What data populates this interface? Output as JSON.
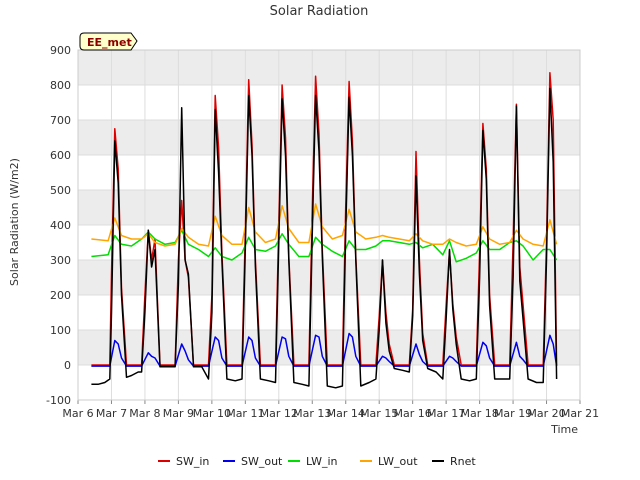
{
  "chart_data": {
    "type": "line",
    "title": "Solar Radiation",
    "xlabel": "Time",
    "ylabel": "Solar Radiation (W/m2)",
    "badge": "EE_met",
    "ylim": [
      -100,
      900
    ],
    "yticks": [
      -100,
      0,
      100,
      200,
      300,
      400,
      500,
      600,
      700,
      800,
      900
    ],
    "xlim": [
      6,
      21
    ],
    "xticks": [
      {
        "v": 6,
        "label": "Mar 6"
      },
      {
        "v": 7,
        "label": "Mar 7"
      },
      {
        "v": 8,
        "label": "Mar 8"
      },
      {
        "v": 9,
        "label": "Mar 9"
      },
      {
        "v": 10,
        "label": "Mar 10"
      },
      {
        "v": 11,
        "label": "Mar 11"
      },
      {
        "v": 12,
        "label": "Mar 12"
      },
      {
        "v": 13,
        "label": "Mar 13"
      },
      {
        "v": 14,
        "label": "Mar 14"
      },
      {
        "v": 15,
        "label": "Mar 15"
      },
      {
        "v": 16,
        "label": "Mar 16"
      },
      {
        "v": 17,
        "label": "Mar 17"
      },
      {
        "v": 18,
        "label": "Mar 18"
      },
      {
        "v": 19,
        "label": "Mar 19"
      },
      {
        "v": 20,
        "label": "Mar 20"
      },
      {
        "v": 21,
        "label": "Mar 21"
      }
    ],
    "grid": true,
    "legend_position": "bottom",
    "series": [
      {
        "name": "SW_in",
        "color": "#dd0000",
        "x": [
          6.4,
          6.95,
          7.0,
          7.1,
          7.2,
          7.3,
          7.45,
          7.6,
          7.9,
          8.0,
          8.1,
          8.2,
          8.3,
          8.45,
          8.9,
          9.0,
          9.1,
          9.2,
          9.3,
          9.45,
          9.9,
          10.0,
          10.1,
          10.2,
          10.3,
          10.45,
          10.9,
          11.0,
          11.1,
          11.2,
          11.3,
          11.45,
          11.9,
          12.0,
          12.1,
          12.2,
          12.3,
          12.45,
          12.9,
          13.0,
          13.1,
          13.2,
          13.3,
          13.45,
          13.9,
          14.0,
          14.1,
          14.2,
          14.3,
          14.45,
          14.9,
          15.0,
          15.1,
          15.2,
          15.3,
          15.45,
          15.9,
          16.0,
          16.1,
          16.2,
          16.3,
          16.45,
          16.9,
          17.0,
          17.1,
          17.2,
          17.3,
          17.45,
          17.9,
          18.0,
          18.1,
          18.2,
          18.3,
          18.45,
          18.9,
          19.0,
          19.1,
          19.2,
          19.3,
          19.45,
          19.9,
          20.0,
          20.1,
          20.2,
          20.3
        ],
        "y": [
          0,
          0,
          260,
          675,
          560,
          220,
          0,
          0,
          0,
          200,
          385,
          300,
          360,
          0,
          0,
          300,
          470,
          300,
          250,
          0,
          0,
          200,
          770,
          620,
          320,
          0,
          0,
          380,
          815,
          630,
          300,
          0,
          0,
          400,
          800,
          650,
          310,
          0,
          0,
          450,
          825,
          660,
          330,
          0,
          0,
          450,
          810,
          640,
          310,
          0,
          0,
          140,
          300,
          150,
          60,
          0,
          0,
          160,
          610,
          300,
          90,
          0,
          0,
          170,
          325,
          175,
          80,
          0,
          0,
          320,
          690,
          560,
          200,
          0,
          0,
          350,
          745,
          280,
          170,
          0,
          0,
          350,
          835,
          700,
          0
        ]
      },
      {
        "name": "SW_out",
        "color": "#0000ee",
        "x": [
          6.4,
          6.95,
          7.1,
          7.2,
          7.3,
          7.45,
          7.9,
          8.1,
          8.2,
          8.3,
          8.45,
          8.9,
          9.1,
          9.2,
          9.3,
          9.45,
          9.9,
          10.1,
          10.2,
          10.3,
          10.45,
          10.9,
          11.1,
          11.2,
          11.3,
          11.45,
          11.9,
          12.1,
          12.2,
          12.3,
          12.45,
          12.9,
          13.1,
          13.2,
          13.3,
          13.45,
          13.9,
          14.1,
          14.2,
          14.3,
          14.45,
          14.9,
          15.1,
          15.2,
          15.3,
          15.45,
          15.9,
          16.1,
          16.2,
          16.3,
          16.45,
          16.9,
          17.1,
          17.2,
          17.3,
          17.45,
          17.9,
          18.1,
          18.2,
          18.3,
          18.45,
          18.9,
          19.1,
          19.2,
          19.3,
          19.45,
          19.9,
          20.1,
          20.2,
          20.3
        ],
        "y": [
          -3,
          -3,
          70,
          60,
          20,
          -3,
          -3,
          35,
          25,
          20,
          -3,
          -3,
          60,
          40,
          15,
          -3,
          -3,
          80,
          70,
          20,
          -3,
          -3,
          80,
          70,
          20,
          -3,
          -3,
          80,
          75,
          25,
          -3,
          -3,
          85,
          80,
          25,
          -3,
          -3,
          90,
          80,
          25,
          -3,
          -3,
          25,
          20,
          10,
          -3,
          -3,
          60,
          30,
          10,
          -3,
          -3,
          25,
          20,
          10,
          -3,
          -3,
          65,
          55,
          20,
          -3,
          -3,
          65,
          25,
          15,
          -3,
          -3,
          85,
          60,
          -3
        ]
      },
      {
        "name": "LW_in",
        "color": "#00dd00",
        "x": [
          6.4,
          6.9,
          7.1,
          7.3,
          7.6,
          7.9,
          8.1,
          8.3,
          8.6,
          8.9,
          9.1,
          9.3,
          9.6,
          9.9,
          10.1,
          10.3,
          10.6,
          10.9,
          11.1,
          11.3,
          11.6,
          11.9,
          12.1,
          12.3,
          12.6,
          12.9,
          13.1,
          13.3,
          13.6,
          13.9,
          14.1,
          14.3,
          14.6,
          14.9,
          15.1,
          15.3,
          15.6,
          15.9,
          16.1,
          16.3,
          16.6,
          16.9,
          17.1,
          17.3,
          17.6,
          17.9,
          18.1,
          18.3,
          18.6,
          18.9,
          19.1,
          19.3,
          19.6,
          19.9,
          20.1,
          20.3
        ],
        "y": [
          310,
          315,
          370,
          345,
          340,
          360,
          380,
          360,
          345,
          350,
          385,
          345,
          330,
          310,
          335,
          310,
          300,
          320,
          365,
          330,
          325,
          340,
          375,
          345,
          310,
          310,
          365,
          345,
          325,
          310,
          355,
          330,
          330,
          340,
          355,
          355,
          350,
          345,
          350,
          335,
          345,
          315,
          355,
          295,
          305,
          320,
          355,
          330,
          330,
          350,
          355,
          340,
          300,
          330,
          330,
          300
        ]
      },
      {
        "name": "LW_out",
        "color": "#ffa500",
        "x": [
          6.4,
          6.9,
          7.1,
          7.3,
          7.6,
          7.9,
          8.1,
          8.3,
          8.6,
          8.9,
          9.1,
          9.3,
          9.6,
          9.9,
          10.1,
          10.3,
          10.6,
          10.9,
          11.1,
          11.3,
          11.6,
          11.9,
          12.1,
          12.3,
          12.6,
          12.9,
          13.1,
          13.3,
          13.6,
          13.9,
          14.1,
          14.3,
          14.6,
          14.9,
          15.1,
          15.3,
          15.6,
          15.9,
          16.1,
          16.3,
          16.6,
          16.9,
          17.1,
          17.3,
          17.6,
          17.9,
          18.1,
          18.3,
          18.6,
          18.9,
          19.1,
          19.3,
          19.6,
          19.9,
          20.1,
          20.3
        ],
        "y": [
          360,
          355,
          420,
          370,
          360,
          360,
          375,
          350,
          340,
          345,
          390,
          365,
          345,
          340,
          425,
          370,
          345,
          345,
          450,
          380,
          350,
          360,
          455,
          390,
          350,
          350,
          460,
          395,
          360,
          370,
          445,
          380,
          360,
          365,
          370,
          365,
          360,
          355,
          375,
          355,
          345,
          345,
          360,
          350,
          340,
          345,
          395,
          360,
          345,
          350,
          385,
          360,
          345,
          340,
          415,
          345
        ]
      },
      {
        "name": "Rnet",
        "color": "#000000",
        "x": [
          6.4,
          6.6,
          6.8,
          6.95,
          7.0,
          7.1,
          7.2,
          7.3,
          7.45,
          7.6,
          7.8,
          7.9,
          8.0,
          8.1,
          8.2,
          8.3,
          8.45,
          8.7,
          8.9,
          9.0,
          9.1,
          9.2,
          9.3,
          9.45,
          9.7,
          9.9,
          10.0,
          10.1,
          10.2,
          10.3,
          10.45,
          10.7,
          10.9,
          11.0,
          11.1,
          11.2,
          11.3,
          11.45,
          11.7,
          11.9,
          12.0,
          12.1,
          12.2,
          12.3,
          12.45,
          12.7,
          12.9,
          13.0,
          13.1,
          13.2,
          13.3,
          13.45,
          13.7,
          13.9,
          14.0,
          14.1,
          14.2,
          14.3,
          14.45,
          14.7,
          14.9,
          15.0,
          15.1,
          15.2,
          15.3,
          15.45,
          15.7,
          15.9,
          16.0,
          16.1,
          16.2,
          16.3,
          16.45,
          16.7,
          16.9,
          17.0,
          17.1,
          17.2,
          17.3,
          17.45,
          17.7,
          17.9,
          18.0,
          18.1,
          18.2,
          18.3,
          18.45,
          18.7,
          18.9,
          19.0,
          19.1,
          19.2,
          19.3,
          19.45,
          19.7,
          19.9,
          20.0,
          20.1,
          20.2,
          20.3
        ],
        "y": [
          -55,
          -55,
          -50,
          -40,
          150,
          640,
          520,
          200,
          -35,
          -30,
          -20,
          -20,
          150,
          385,
          280,
          330,
          -5,
          -5,
          -5,
          230,
          735,
          300,
          260,
          -5,
          -5,
          -40,
          150,
          730,
          550,
          300,
          -40,
          -45,
          -40,
          330,
          770,
          600,
          280,
          -40,
          -45,
          -50,
          350,
          760,
          600,
          300,
          -50,
          -55,
          -60,
          380,
          770,
          610,
          310,
          -60,
          -65,
          -60,
          380,
          765,
          600,
          300,
          -60,
          -50,
          -40,
          100,
          300,
          120,
          40,
          -10,
          -15,
          -20,
          140,
          540,
          260,
          70,
          -10,
          -20,
          -40,
          130,
          330,
          160,
          60,
          -40,
          -45,
          -40,
          250,
          670,
          530,
          170,
          -40,
          -40,
          -40,
          250,
          740,
          240,
          130,
          -40,
          -50,
          -50,
          300,
          790,
          580,
          -40
        ]
      }
    ]
  }
}
